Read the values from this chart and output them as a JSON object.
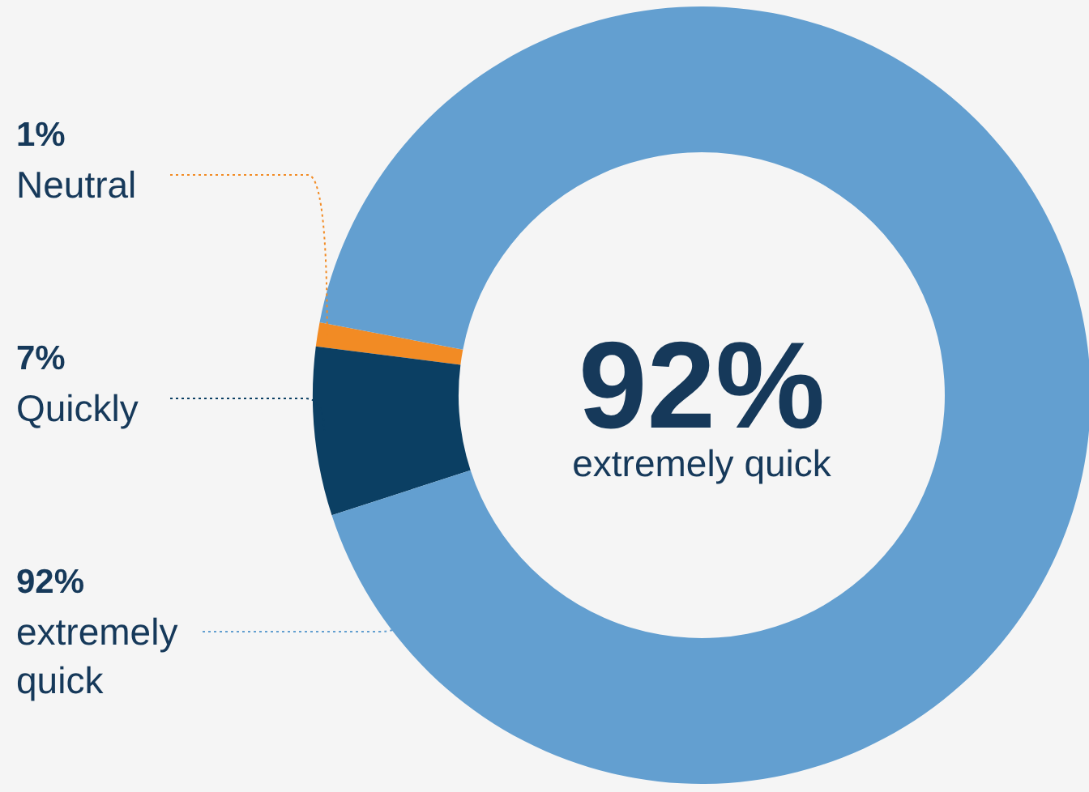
{
  "chart_data": {
    "type": "donut",
    "categories": [
      "Neutral",
      "Quickly",
      "extremely quick"
    ],
    "values": [
      1,
      7,
      92
    ],
    "colors": [
      "#f28b24",
      "#0b3f63",
      "#639fd0"
    ],
    "value_labels": [
      "1%",
      "7%",
      "92%"
    ],
    "annotations": [
      "92%",
      "extremely quick"
    ]
  }
}
